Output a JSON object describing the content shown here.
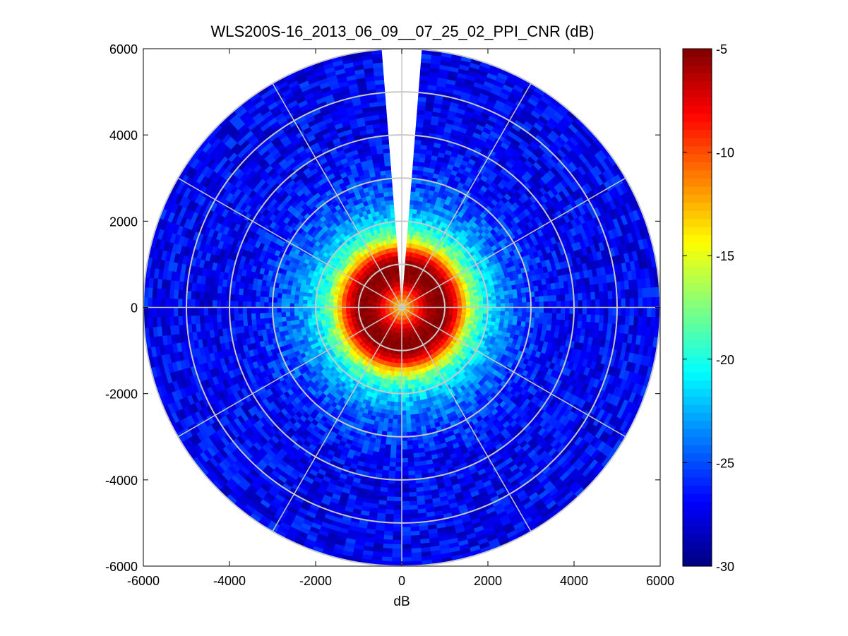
{
  "chart_data": {
    "type": "heatmap",
    "subtype": "polar-ppi",
    "title": "WLS200S-16_2013_06_09__07_25_02_PPI_CNR (dB)",
    "xlabel": "dB",
    "ylabel": "",
    "xlim": [
      -6000,
      6000
    ],
    "ylim": [
      -6000,
      6000
    ],
    "x_ticks": [
      "-6000",
      "-4000",
      "-2000",
      "0",
      "2000",
      "4000",
      "6000"
    ],
    "y_ticks": [
      "6000",
      "4000",
      "2000",
      "0",
      "-2000",
      "-4000",
      "-6000"
    ],
    "grid": "polar",
    "grid_rings": [
      1000,
      2000,
      3000,
      4000,
      5000,
      6000
    ],
    "grid_spokes_deg": [
      0,
      30,
      60,
      90,
      120,
      150,
      180,
      210,
      240,
      270,
      300,
      330
    ],
    "missing_sector_deg": [
      -4,
      4
    ],
    "max_range": 6000,
    "colorbar": {
      "colormap": "jet",
      "clim": [
        -30,
        -5
      ],
      "ticks": [
        "-5",
        "-10",
        "-15",
        "-20",
        "-25",
        "-30"
      ],
      "placement": "right"
    },
    "radial_profile": {
      "range": [
        0,
        300,
        600,
        900,
        1100,
        1300,
        1500,
        1700,
        2000,
        2300,
        2600,
        3000,
        3500,
        4000,
        6000
      ],
      "cnr_db": [
        -14,
        -10,
        -6,
        -5,
        -6,
        -9,
        -14,
        -18,
        -21,
        -23,
        -24.5,
        -25.5,
        -26.5,
        -27,
        -27
      ]
    }
  }
}
